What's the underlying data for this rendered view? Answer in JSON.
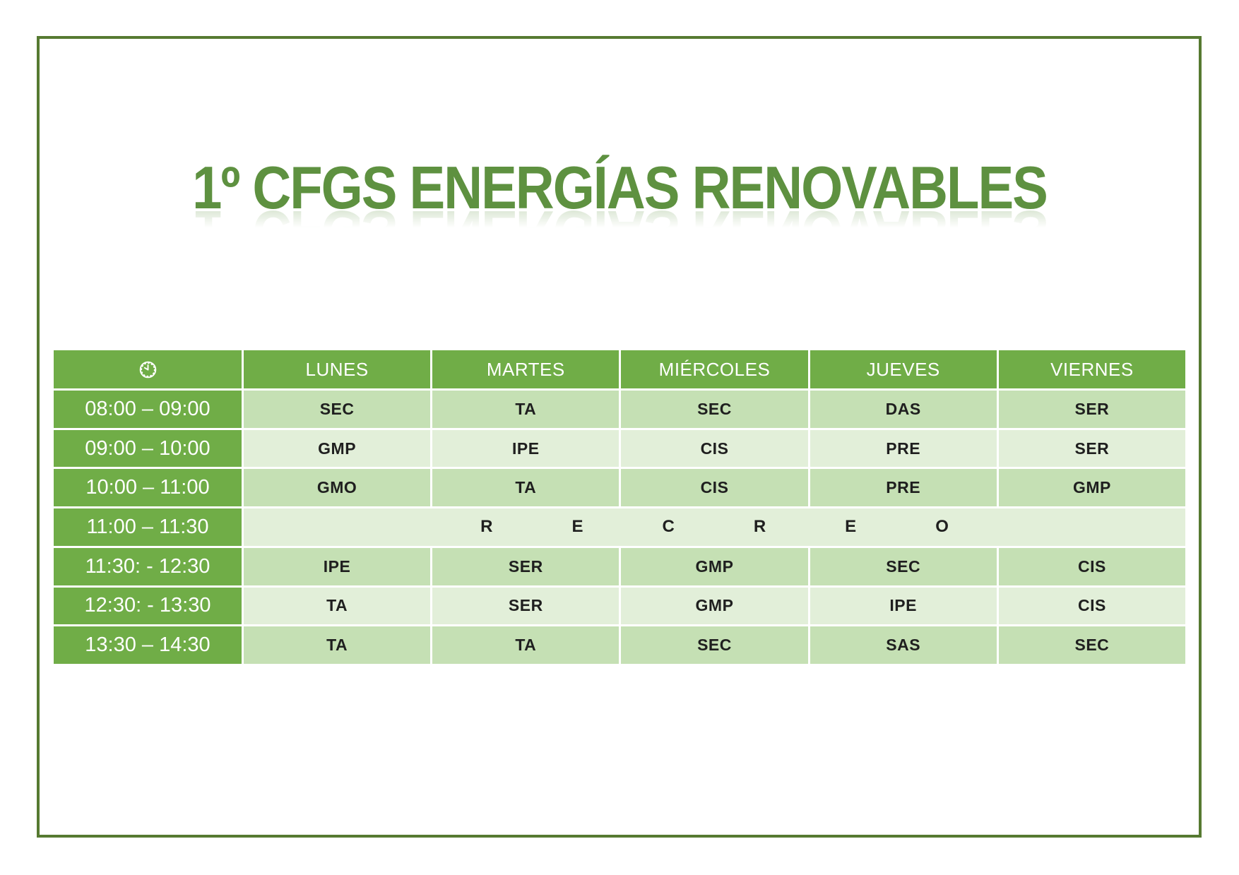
{
  "title": "1º CFGS ENERGÍAS RENOVABLES",
  "colors": {
    "header_green": "#70AD47",
    "row_medium": "#C5E0B4",
    "row_light": "#E2EFD9",
    "title_green": "#5E9140",
    "border_green": "#567A31",
    "grid_line": "#FFFFFF",
    "cell_text": "#1F1F1F"
  },
  "table": {
    "header_icon": "clock-icon",
    "days": [
      "LUNES",
      "MARTES",
      "MIÉRCOLES",
      "JUEVES",
      "VIERNES"
    ],
    "rows": [
      {
        "time": "08:00 – 09:00",
        "cells": [
          "SEC",
          "TA",
          "SEC",
          "DAS",
          "SER"
        ]
      },
      {
        "time": "09:00 – 10:00",
        "cells": [
          "GMP",
          "IPE",
          "CIS",
          "PRE",
          "SER"
        ]
      },
      {
        "time": "10:00 – 11:00",
        "cells": [
          "GMO",
          "TA",
          "CIS",
          "PRE",
          "GMP"
        ]
      },
      {
        "time": "11:00 – 11:30",
        "merged": "RECREO"
      },
      {
        "time": "11:30: - 12:30",
        "cells": [
          "IPE",
          "SER",
          "GMP",
          "SEC",
          "CIS"
        ]
      },
      {
        "time": "12:30: - 13:30",
        "cells": [
          "TA",
          "SER",
          "GMP",
          "IPE",
          "CIS"
        ]
      },
      {
        "time": "13:30 – 14:30",
        "cells": [
          "TA",
          "TA",
          "SEC",
          "SAS",
          "SEC"
        ]
      }
    ]
  }
}
